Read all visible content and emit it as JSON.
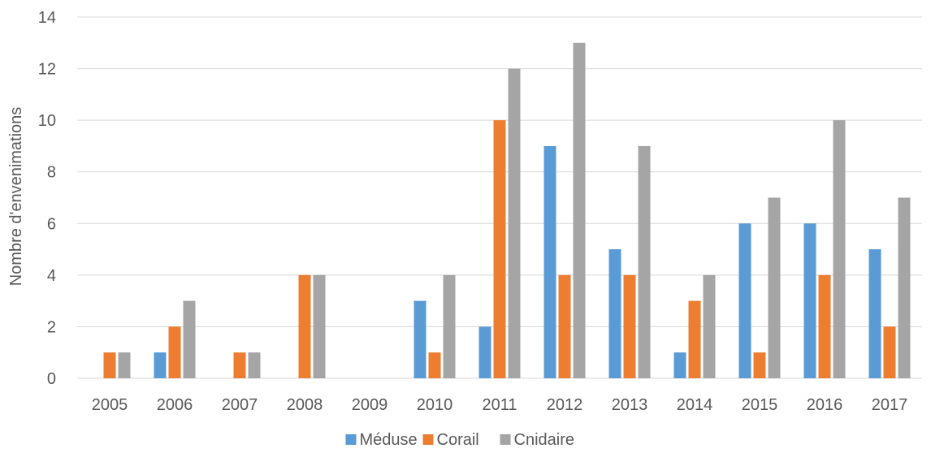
{
  "chart_data": {
    "type": "bar",
    "title": "",
    "xlabel": "",
    "ylabel": "Nombre d'envenimations",
    "ylim": [
      0,
      14
    ],
    "yticks": [
      0,
      2,
      4,
      6,
      8,
      10,
      12,
      14
    ],
    "grid": true,
    "legend_position": "bottom",
    "categories": [
      "2005",
      "2006",
      "2007",
      "2008",
      "2009",
      "2010",
      "2011",
      "2012",
      "2013",
      "2014",
      "2015",
      "2016",
      "2017"
    ],
    "series": [
      {
        "name": "Méduse",
        "color": "#5b9bd5",
        "values": [
          0,
          1,
          0,
          0,
          0,
          3,
          2,
          9,
          5,
          1,
          6,
          6,
          5
        ]
      },
      {
        "name": "Corail",
        "color": "#ed7d31",
        "values": [
          1,
          2,
          1,
          4,
          0,
          1,
          10,
          4,
          4,
          3,
          1,
          4,
          2
        ]
      },
      {
        "name": "Cnidaire",
        "color": "#a5a5a5",
        "values": [
          1,
          3,
          1,
          4,
          0,
          4,
          12,
          13,
          9,
          4,
          7,
          10,
          7
        ]
      }
    ]
  }
}
